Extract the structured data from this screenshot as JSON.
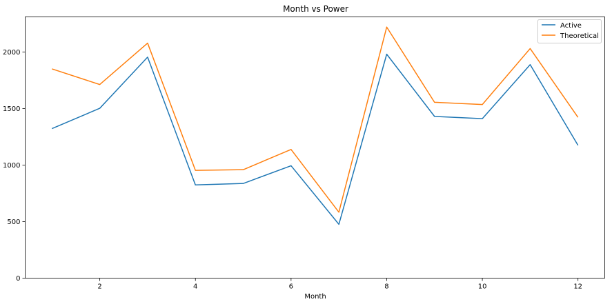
{
  "chart_data": {
    "type": "line",
    "title": "Month vs Power",
    "xlabel": "Month",
    "ylabel": "",
    "x": [
      1,
      2,
      3,
      4,
      5,
      6,
      7,
      8,
      9,
      10,
      11,
      12
    ],
    "xlim": [
      0.44,
      12.56
    ],
    "ylim": [
      0,
      2310
    ],
    "xticks": [
      2,
      4,
      6,
      8,
      10,
      12
    ],
    "yticks": [
      0,
      500,
      1000,
      1500,
      2000
    ],
    "grid": false,
    "legend_position": "top-right",
    "series": [
      {
        "name": "Active",
        "color": "#1f77b4",
        "values": [
          1322,
          1502,
          1954,
          824,
          837,
          994,
          476,
          1980,
          1430,
          1410,
          1888,
          1175
        ]
      },
      {
        "name": "Theoretical",
        "color": "#ff7f0e",
        "values": [
          1850,
          1712,
          2078,
          953,
          959,
          1138,
          583,
          2220,
          1555,
          1535,
          2030,
          1422
        ]
      }
    ]
  }
}
